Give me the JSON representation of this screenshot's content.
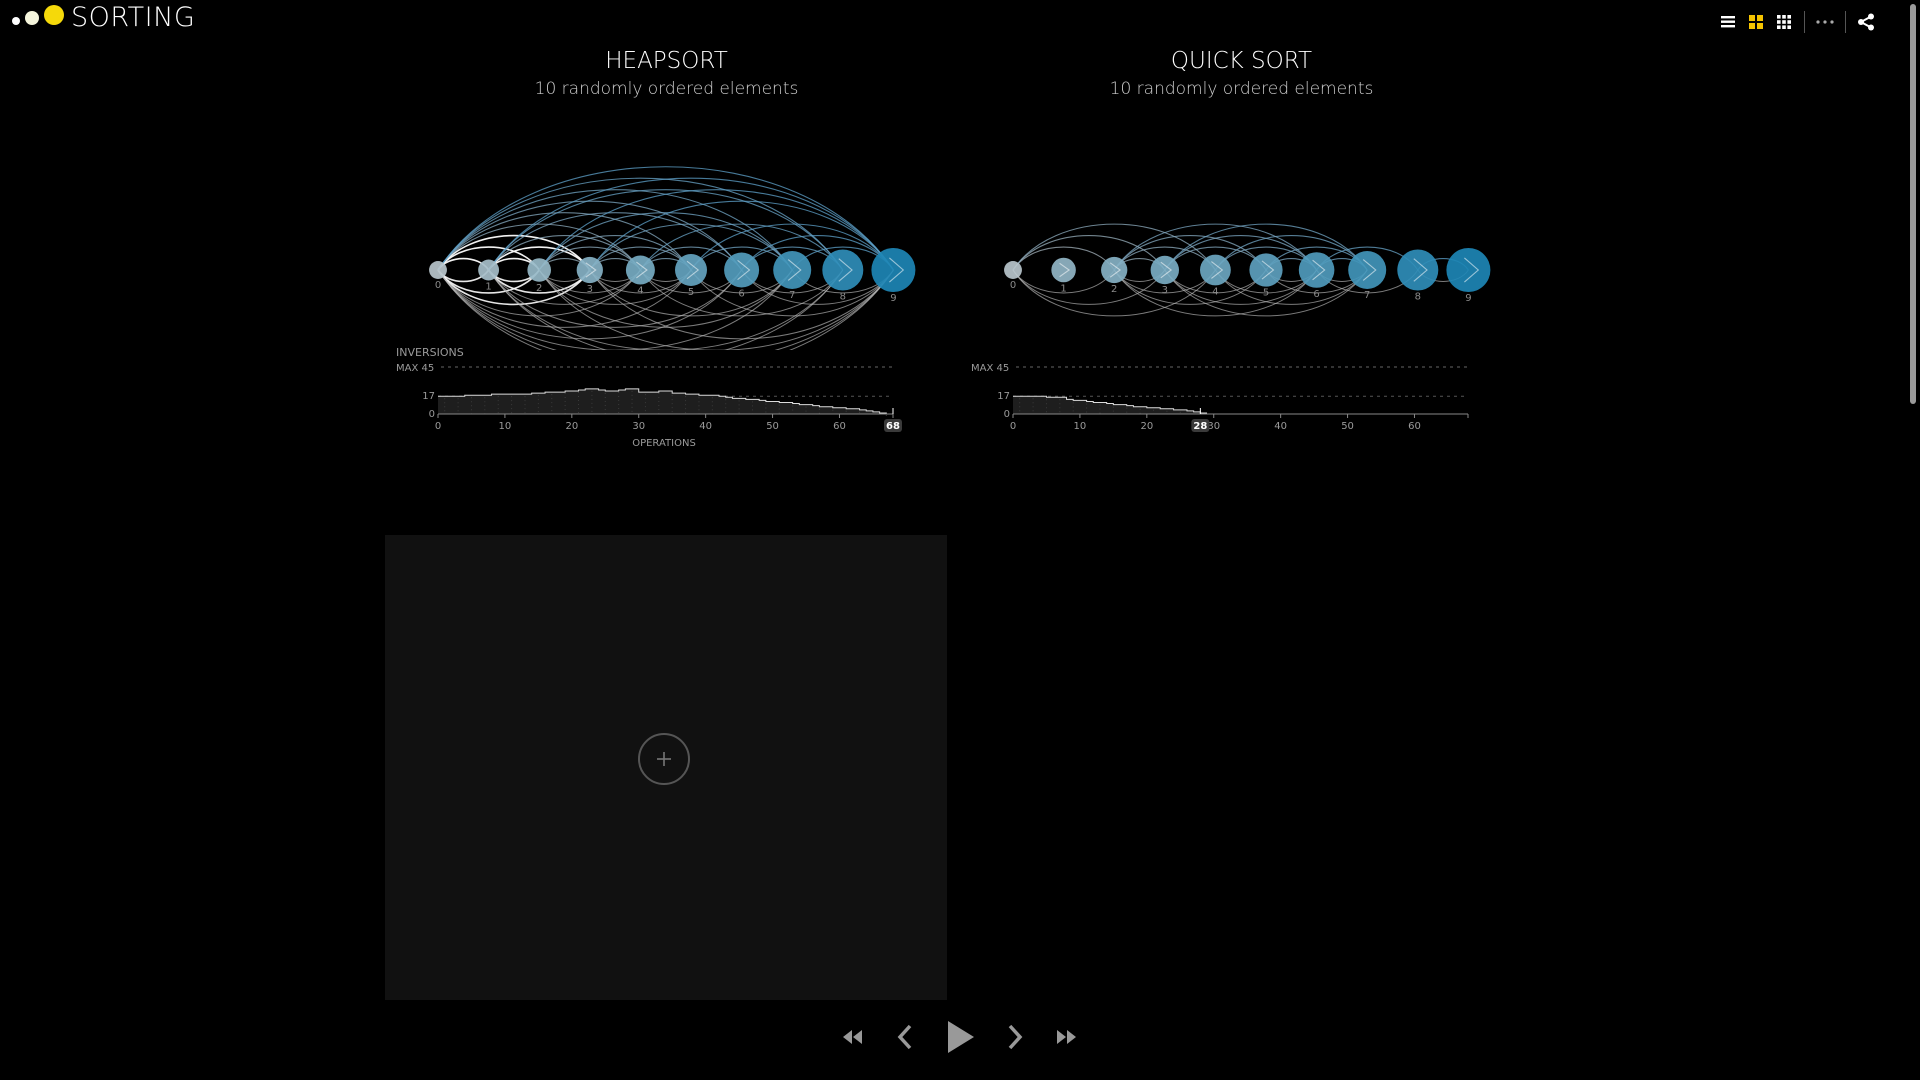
{
  "app": {
    "title": "SORTING",
    "logo_dots": [
      {
        "size": 8,
        "color": "#ffffff"
      },
      {
        "size": 14,
        "color": "#f5f5dc"
      },
      {
        "size": 20,
        "color": "#f5d90a"
      }
    ]
  },
  "toolbar": {
    "buttons": [
      {
        "name": "list-view-button",
        "icon": "list-icon",
        "active": false
      },
      {
        "name": "grid-view-button",
        "icon": "grid-2x2-icon",
        "active": true
      },
      {
        "name": "grid-dense-view-button",
        "icon": "grid-3x3-icon",
        "active": false
      },
      {
        "name": "more-options-button",
        "icon": "ellipsis-icon",
        "active": false
      },
      {
        "name": "share-button",
        "icon": "share-icon",
        "active": false
      }
    ],
    "active_color": "#f5c400",
    "icon_color": "#ffffff"
  },
  "colors": {
    "small_node": "#cfcfcf",
    "large_node": "#1d86b5",
    "arc_white": "#ffffff",
    "arc_blue": "#5fa3cc",
    "histogram_fill": "#1e1e1e",
    "histogram_line": "#ffffff",
    "axis": "#888888"
  },
  "panels": [
    {
      "id": "heap",
      "title": "HEAPSORT",
      "subtitle": "10 randomly ordered elements",
      "inversions_label": "INVERSIONS",
      "operations_label": "OPERATIONS",
      "max_label": "MAX 45",
      "marker_label": "68",
      "chart_data": {
        "type": "area",
        "title": "",
        "ylabel": "INVERSIONS",
        "xlabel": "OPERATIONS",
        "max_value": 45,
        "y_ticks": [
          0,
          17
        ],
        "x_ticks": [
          0,
          10,
          20,
          30,
          40,
          50,
          60
        ],
        "xlim": [
          0,
          68
        ],
        "current_operation": 68,
        "values": [
          17,
          17,
          17,
          17,
          18,
          18,
          18,
          18,
          19,
          19,
          19,
          19,
          19,
          19,
          20,
          20,
          21,
          21,
          21,
          22,
          22,
          23,
          24,
          24,
          23,
          22,
          22,
          23,
          24,
          24,
          21,
          21,
          21,
          22,
          22,
          20,
          20,
          19,
          19,
          18,
          18,
          18,
          17,
          16,
          15,
          15,
          14,
          14,
          13,
          12,
          12,
          11,
          11,
          10,
          9,
          9,
          8,
          7,
          7,
          6,
          6,
          5,
          5,
          4,
          3,
          2,
          1,
          0
        ]
      },
      "nodes": [
        {
          "label": "0",
          "size": 0.13
        },
        {
          "label": "1",
          "size": 0.23
        },
        {
          "label": "2",
          "size": 0.32
        },
        {
          "label": "3",
          "size": 0.41
        },
        {
          "label": "4",
          "size": 0.5
        },
        {
          "label": "5",
          "size": 0.6
        },
        {
          "label": "6",
          "size": 0.7
        },
        {
          "label": "7",
          "size": 0.8
        },
        {
          "label": "8",
          "size": 0.9
        },
        {
          "label": "9",
          "size": 1.0
        }
      ],
      "arcs": [
        [
          0,
          1
        ],
        [
          0,
          2
        ],
        [
          0,
          3
        ],
        [
          0,
          4
        ],
        [
          0,
          5
        ],
        [
          0,
          6
        ],
        [
          0,
          7
        ],
        [
          0,
          8
        ],
        [
          0,
          9
        ],
        [
          1,
          2
        ],
        [
          1,
          3
        ],
        [
          1,
          4
        ],
        [
          1,
          6
        ],
        [
          1,
          8
        ],
        [
          1,
          9
        ],
        [
          2,
          3
        ],
        [
          2,
          4
        ],
        [
          2,
          5
        ],
        [
          2,
          7
        ],
        [
          2,
          9
        ],
        [
          3,
          4
        ],
        [
          3,
          5
        ],
        [
          3,
          7
        ],
        [
          3,
          9
        ],
        [
          4,
          5
        ],
        [
          4,
          6
        ],
        [
          4,
          8
        ],
        [
          5,
          7
        ],
        [
          5,
          9
        ],
        [
          6,
          8
        ],
        [
          6,
          9
        ],
        [
          7,
          9
        ]
      ],
      "highlight_arcs": [
        [
          0,
          1
        ],
        [
          0,
          2
        ],
        [
          1,
          2
        ],
        [
          0,
          3
        ],
        [
          1,
          3
        ]
      ]
    },
    {
      "id": "quick",
      "title": "QUICK SORT",
      "subtitle": "10 randomly ordered elements",
      "inversions_label": "",
      "operations_label": "",
      "max_label": "MAX 45",
      "marker_label": "28",
      "chart_data": {
        "type": "area",
        "title": "",
        "ylabel": "",
        "xlabel": "",
        "max_value": 45,
        "y_ticks": [
          0,
          17
        ],
        "x_ticks": [
          0,
          10,
          20,
          30,
          40,
          50,
          60
        ],
        "xlim": [
          0,
          68
        ],
        "current_operation": 28,
        "values": [
          17,
          17,
          17,
          17,
          17,
          16,
          16,
          16,
          14,
          13,
          13,
          12,
          11,
          11,
          10,
          9,
          9,
          8,
          7,
          7,
          6,
          6,
          5,
          5,
          4,
          4,
          3,
          2,
          1
        ]
      },
      "nodes": [
        {
          "label": "0",
          "size": 0.13
        },
        {
          "label": "1",
          "size": 0.35
        },
        {
          "label": "2",
          "size": 0.41
        },
        {
          "label": "3",
          "size": 0.48
        },
        {
          "label": "4",
          "size": 0.56
        },
        {
          "label": "5",
          "size": 0.64
        },
        {
          "label": "6",
          "size": 0.72
        },
        {
          "label": "7",
          "size": 0.8
        },
        {
          "label": "8",
          "size": 0.9
        },
        {
          "label": "9",
          "size": 1.0
        }
      ],
      "arcs": [
        [
          0,
          2
        ],
        [
          0,
          3
        ],
        [
          0,
          4
        ],
        [
          2,
          3
        ],
        [
          2,
          4
        ],
        [
          2,
          5
        ],
        [
          3,
          6
        ],
        [
          3,
          7
        ],
        [
          4,
          6
        ],
        [
          4,
          7
        ],
        [
          5,
          6
        ],
        [
          5,
          7
        ],
        [
          6,
          7
        ],
        [
          6,
          8
        ],
        [
          8,
          9
        ],
        [
          2,
          6
        ],
        [
          3,
          5
        ]
      ],
      "highlight_arcs": []
    }
  ],
  "playback": {
    "buttons": [
      {
        "name": "rewind-button",
        "icon": "rewind-icon"
      },
      {
        "name": "step-back-button",
        "icon": "chevron-left-icon"
      },
      {
        "name": "play-button",
        "icon": "play-icon"
      },
      {
        "name": "step-forward-button",
        "icon": "chevron-right-icon"
      },
      {
        "name": "fast-forward-button",
        "icon": "fast-forward-icon"
      }
    ]
  },
  "add_card": {
    "icon": "plus-icon"
  }
}
